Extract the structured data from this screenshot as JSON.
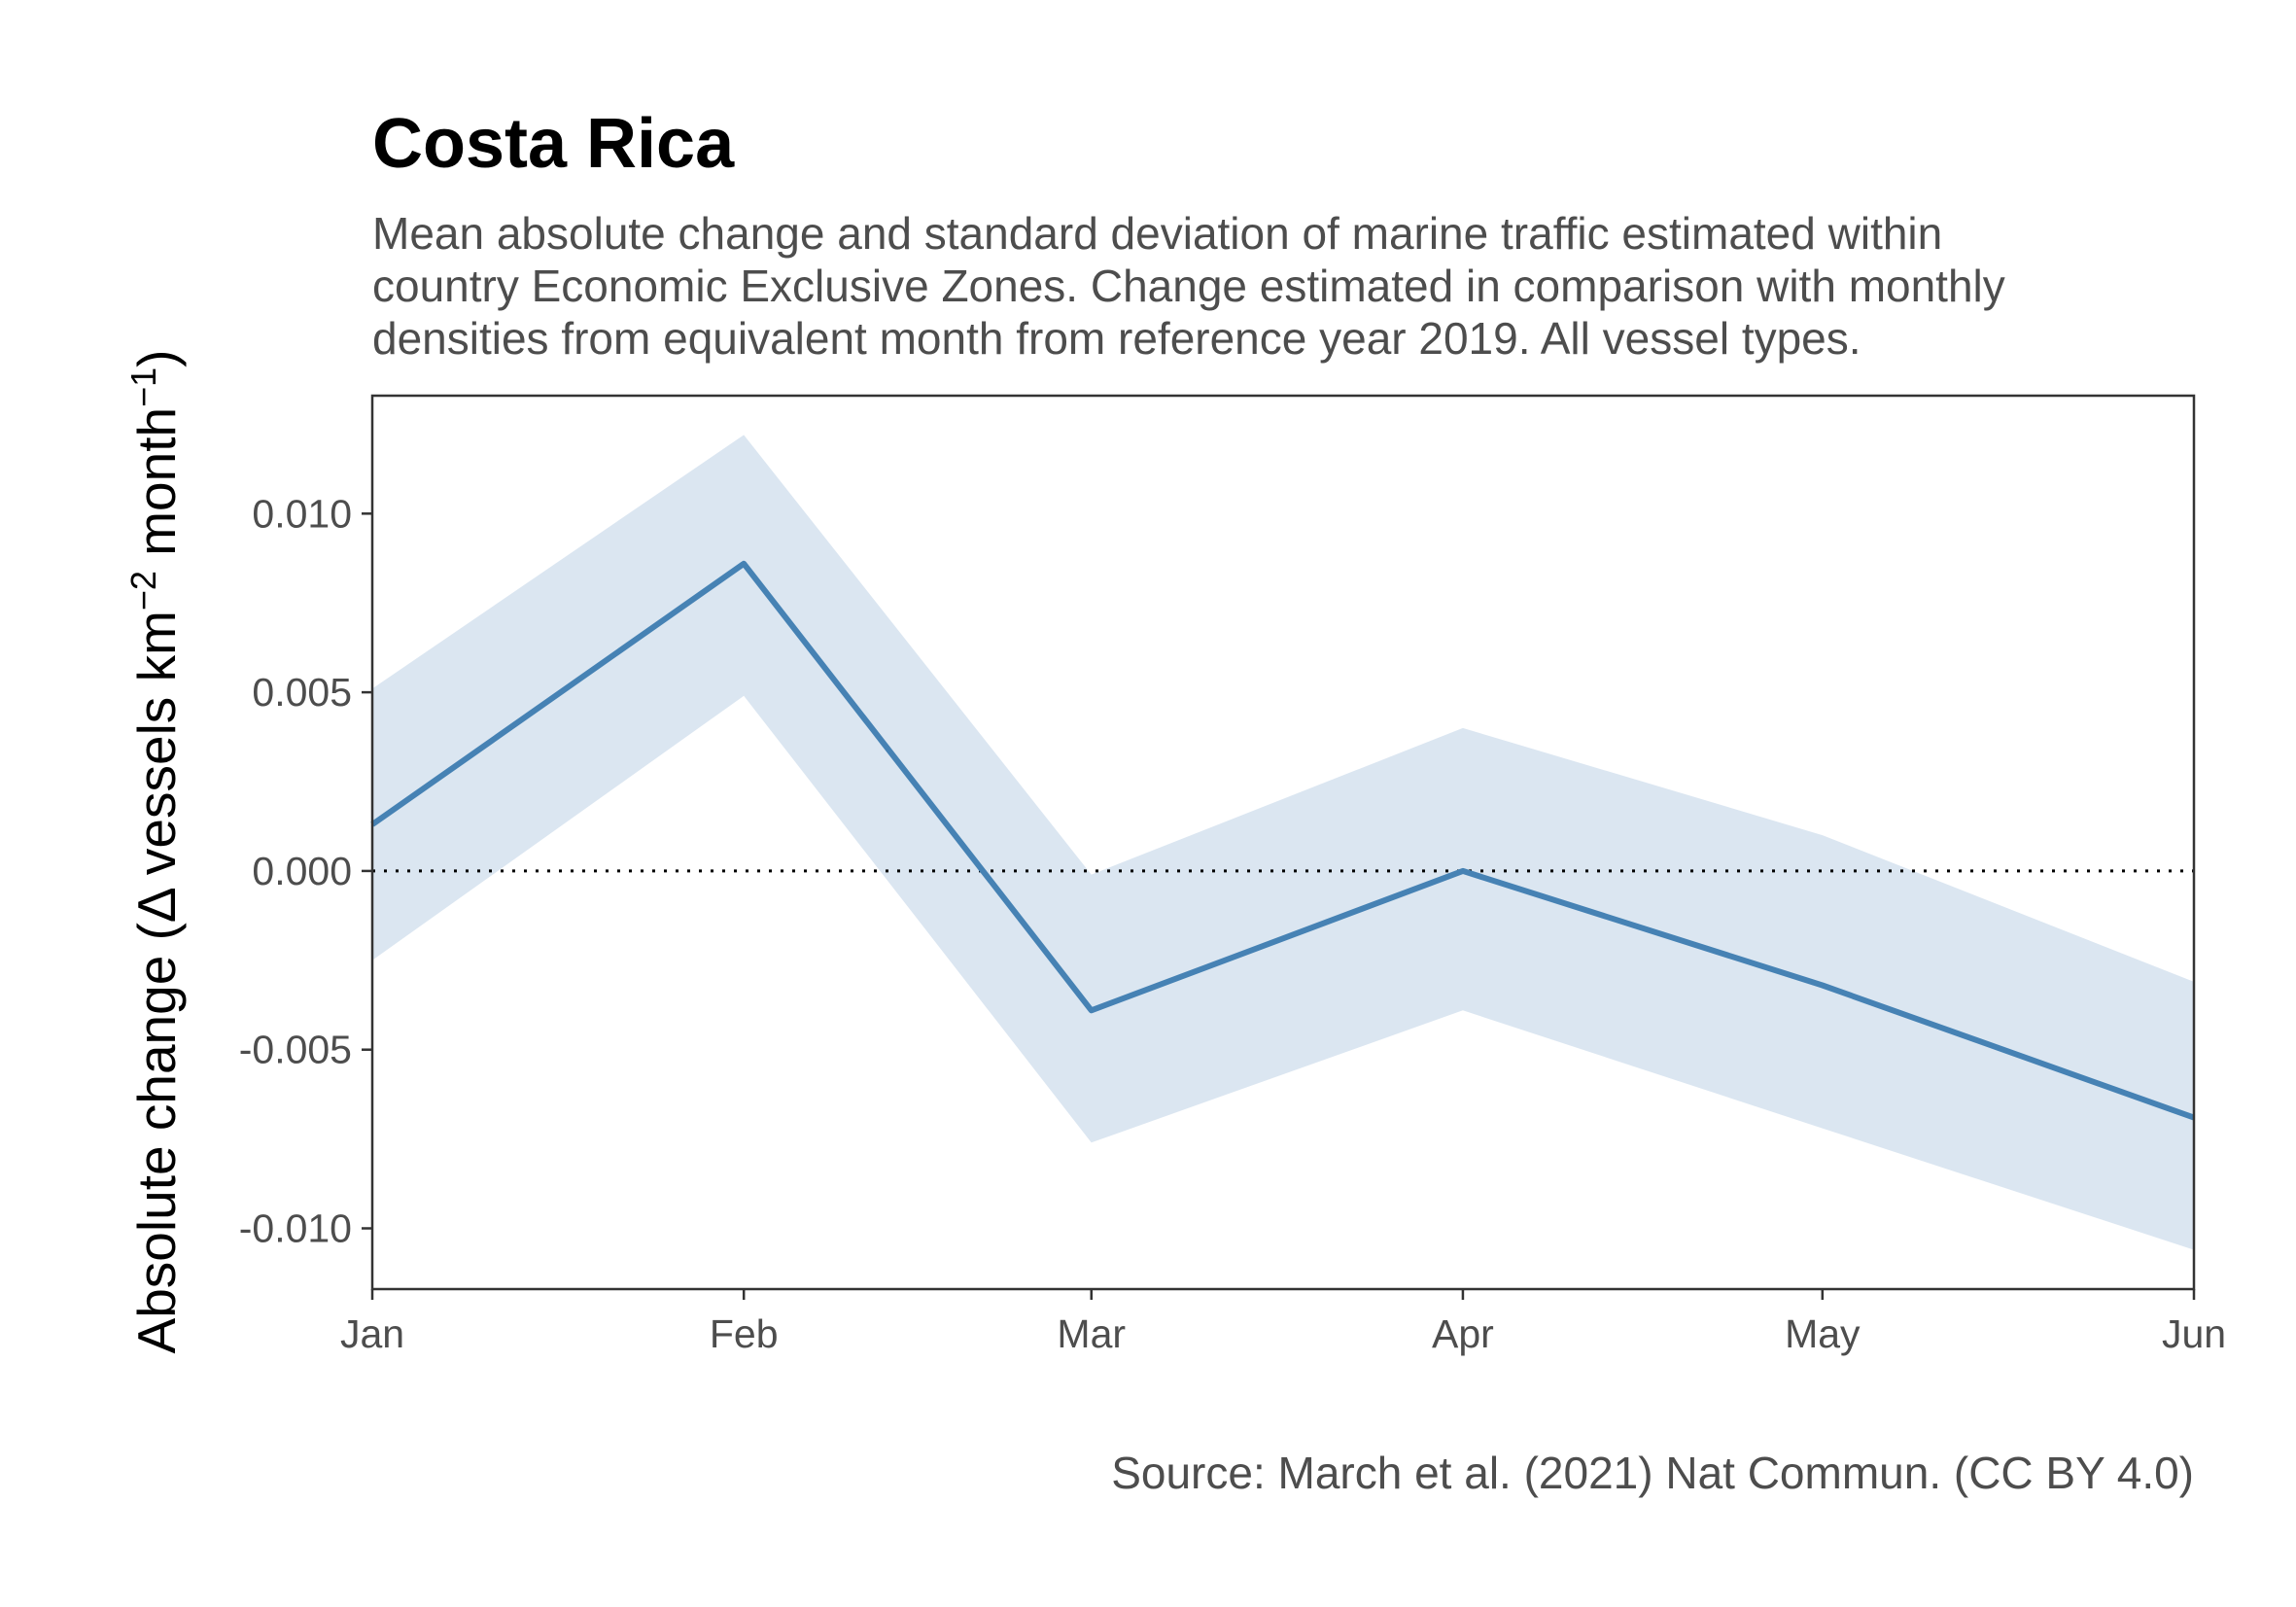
{
  "chart_data": {
    "type": "line",
    "title": "Costa Rica",
    "subtitle": [
      "Mean absolute change and standard deviation of marine traffic estimated within",
      "country Economic Exclusive Zones. Change estimated in comparison with monthly",
      "densities from equivalent month from reference year 2019. All vessel types."
    ],
    "caption": "Source: March et al. (2021) Nat Commun. (CC BY 4.0)",
    "ylabel": {
      "prefix": "Absolute change (",
      "delta": "Δ",
      "vessels": " vessels km",
      "sup1": "−2",
      "month": " month",
      "sup2": "−1",
      "suffix": ")"
    },
    "categories": [
      "Jan",
      "Feb",
      "Mar",
      "Apr",
      "May",
      "Jun"
    ],
    "x": [
      "2020-01-01",
      "2020-02-01",
      "2020-03-01",
      "2020-04-01",
      "2020-05-01",
      "2020-06-01"
    ],
    "series": [
      {
        "values": [
          0.0013,
          0.0086,
          -0.0039,
          0.0,
          -0.0032,
          -0.0069
        ],
        "sd_upper": [
          0.0051,
          0.0122,
          -0.0001,
          0.004,
          0.001,
          -0.0031
        ],
        "sd_lower": [
          -0.0025,
          0.0049,
          -0.0076,
          -0.0039,
          -0.0072,
          -0.0106
        ]
      }
    ],
    "yticks": [
      -0.01,
      -0.005,
      0,
      0.005,
      0.01
    ],
    "ytick_labels": [
      "-0.010",
      "-0.005",
      "0.000",
      "0.005",
      "0.010"
    ],
    "ylim": [
      -0.0117,
      0.0133
    ],
    "xlim": [
      "2020-01-01",
      "2020-06-01"
    ],
    "reference_line": 0,
    "grid": false,
    "colors": {
      "line": "#4682b4",
      "ribbon": "#dbe6f1",
      "axis": "#333333",
      "reference": "#000000"
    }
  }
}
